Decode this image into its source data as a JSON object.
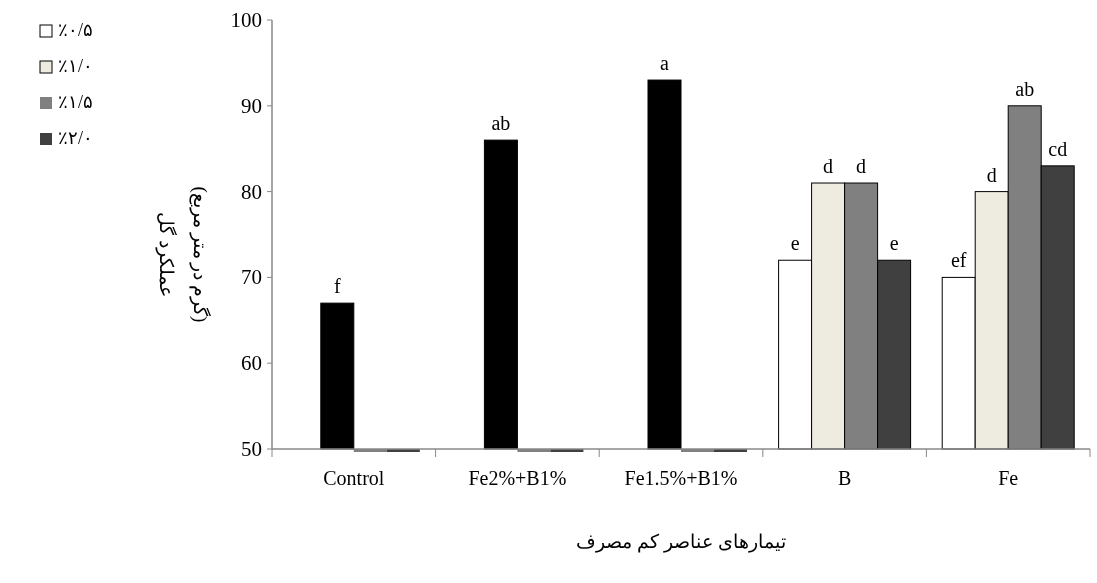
{
  "chart_data": {
    "type": "bar",
    "ylabel": "عملکرد گل\n(گرم در متر مربع)",
    "xlabel": "تیمارهای عناصر کم مصرف",
    "categories": [
      "Control",
      "Fe2%+B1%",
      "Fe1.5%+B1%",
      "B",
      "Fe"
    ],
    "series": [
      {
        "name": "٪۰/۵",
        "color": "#ffffff",
        "values": [
          null,
          null,
          null,
          72,
          70
        ],
        "value_labels": [
          null,
          null,
          null,
          "e",
          "ef"
        ]
      },
      {
        "name": "٪۱/۰",
        "color": "#eeece1",
        "colors": [
          "#000000",
          "#000000",
          "#000000",
          "#eeece1",
          "#eeece1"
        ],
        "values": [
          67,
          86,
          93,
          81,
          80
        ],
        "value_labels": [
          "f",
          "ab",
          "a",
          "d",
          "d"
        ]
      },
      {
        "name": "٪۱/۵",
        "color": "#808080",
        "values": [
          50,
          50,
          50,
          81,
          90
        ],
        "value_labels": [
          null,
          null,
          null,
          "d",
          "ab"
        ]
      },
      {
        "name": "٪۲/۰",
        "color": "#404040",
        "values": [
          50,
          50,
          50,
          72,
          83
        ],
        "value_labels": [
          null,
          null,
          null,
          "e",
          "cd"
        ]
      }
    ],
    "ylim": [
      50,
      100
    ],
    "yticks": [
      50,
      60,
      70,
      80,
      90,
      100
    ],
    "grid": false,
    "legend": "top left"
  }
}
